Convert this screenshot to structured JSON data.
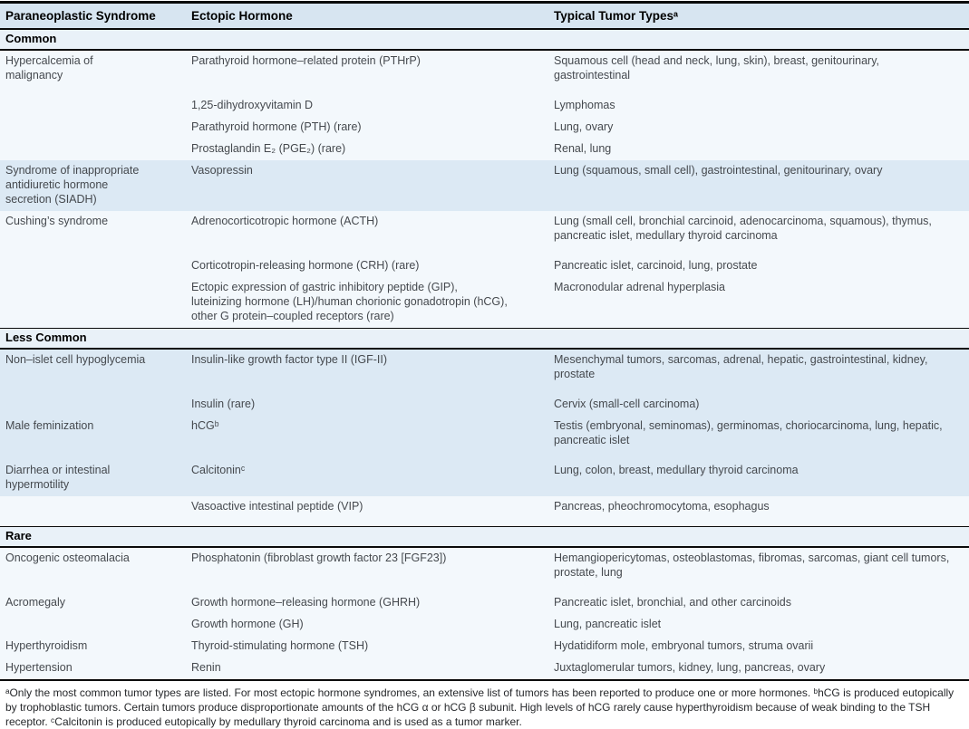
{
  "colors": {
    "header_bg": "#d7e5f1",
    "section_bg": "#e9f1f8",
    "row_band_blue": "#dce9f4",
    "row_band_pale": "#f3f8fc"
  },
  "table": {
    "columns": [
      "Paraneoplastic Syndrome",
      "Ectopic Hormone",
      "Typical Tumor Typesᵃ"
    ],
    "sections": [
      {
        "label": "Common",
        "rows": [
          {
            "syndrome": "Hypercalcemia of malignancy",
            "hormone": "Parathyroid hormone–related protein (PTHrP)",
            "tumors": "Squamous cell (head and neck, lung, skin), breast, genitourinary, gastrointestinal",
            "shade": "light",
            "gap": true
          },
          {
            "syndrome": "",
            "hormone": "1,25-dihydroxyvitamin D",
            "tumors": "Lymphomas",
            "shade": "light",
            "gap": false
          },
          {
            "syndrome": "",
            "hormone": "Parathyroid hormone (PTH) (rare)",
            "tumors": "Lung, ovary",
            "shade": "light",
            "gap": false
          },
          {
            "syndrome": "",
            "hormone": "Prostaglandin E₂ (PGE₂) (rare)",
            "tumors": "Renal, lung",
            "shade": "light",
            "gap": false
          },
          {
            "syndrome": "Syndrome of inappropriate antidiuretic hormone secretion (SIADH)",
            "hormone": "Vasopressin",
            "tumors": "Lung (squamous, small cell), gastrointestinal, genitourinary, ovary",
            "shade": "dark",
            "gap": false
          },
          {
            "syndrome": "Cushing’s syndrome",
            "hormone": "Adrenocorticotropic hormone (ACTH)",
            "tumors": "Lung (small cell, bronchial carcinoid, adenocarcinoma, squamous), thymus, pancreatic islet, medullary thyroid carcinoma",
            "shade": "light",
            "gap": true
          },
          {
            "syndrome": "",
            "hormone": "Corticotropin-releasing hormone (CRH) (rare)",
            "tumors": "Pancreatic islet, carcinoid, lung, prostate",
            "shade": "light",
            "gap": false
          },
          {
            "syndrome": "",
            "hormone": "Ectopic expression of gastric inhibitory peptide (GIP), luteinizing hormone (LH)/human chorionic gonadotropin (hCG), other G protein–coupled receptors (rare)",
            "tumors": "Macronodular adrenal hyperplasia",
            "shade": "light",
            "gap": false
          }
        ]
      },
      {
        "label": "Less Common",
        "rows": [
          {
            "syndrome": "Non–islet cell hypoglycemia",
            "hormone": "Insulin-like growth factor type II (IGF-II)",
            "tumors": "Mesenchymal tumors, sarcomas, adrenal, hepatic, gastrointestinal, kidney, prostate",
            "shade": "dark",
            "gap": true
          },
          {
            "syndrome": "",
            "hormone": "Insulin (rare)",
            "tumors": "Cervix (small-cell carcinoma)",
            "shade": "dark",
            "gap": false
          },
          {
            "syndrome": "Male feminization",
            "hormone": "hCGᵇ",
            "tumors": "Testis (embryonal, seminomas), germinomas, choriocarcinoma, lung, hepatic, pancreatic islet",
            "shade": "dark",
            "gap": true
          },
          {
            "syndrome": "Diarrhea or intestinal hypermotility",
            "hormone": "Calcitoninᶜ",
            "tumors": "Lung, colon, breast, medullary thyroid carcinoma",
            "shade": "dark",
            "gap": false
          },
          {
            "syndrome": "",
            "hormone": "Vasoactive intestinal peptide (VIP)",
            "tumors": "Pancreas, pheochromocytoma, esophagus",
            "shade": "light",
            "gap": true
          }
        ]
      },
      {
        "label": "Rare",
        "rows": [
          {
            "syndrome": "Oncogenic osteomalacia",
            "hormone": "Phosphatonin (fibroblast growth factor 23 [FGF23])",
            "tumors": "Hemangiopericytomas, osteoblastomas, fibromas, sarcomas, giant cell tumors, prostate, lung",
            "shade": "light",
            "gap": true
          },
          {
            "syndrome": "Acromegaly",
            "hormone": "Growth hormone–releasing hormone (GHRH)",
            "tumors": "Pancreatic islet, bronchial, and other carcinoids",
            "shade": "light",
            "gap": false
          },
          {
            "syndrome": "",
            "hormone": "Growth hormone (GH)",
            "tumors": "Lung, pancreatic islet",
            "shade": "light",
            "gap": false
          },
          {
            "syndrome": "Hyperthyroidism",
            "hormone": "Thyroid-stimulating hormone (TSH)",
            "tumors": "Hydatidiform mole, embryonal tumors, struma ovarii",
            "shade": "light",
            "gap": false
          },
          {
            "syndrome": "Hypertension",
            "hormone": "Renin",
            "tumors": "Juxtaglomerular tumors, kidney, lung, pancreas, ovary",
            "shade": "light",
            "gap": false
          }
        ]
      }
    ],
    "footnote": "ᵃOnly the most common tumor types are listed. For most ectopic hormone syndromes, an extensive list of tumors has been reported to produce one or more hormones.  ᵇhCG is produced eutopically by trophoblastic tumors. Certain tumors produce disproportionate amounts of the hCG α or hCG β subunit. High levels of hCG rarely cause hyperthyroidism because of weak binding to the TSH receptor.  ᶜCalcitonin is produced eutopically by medullary thyroid carcinoma and is used as a tumor marker."
  }
}
